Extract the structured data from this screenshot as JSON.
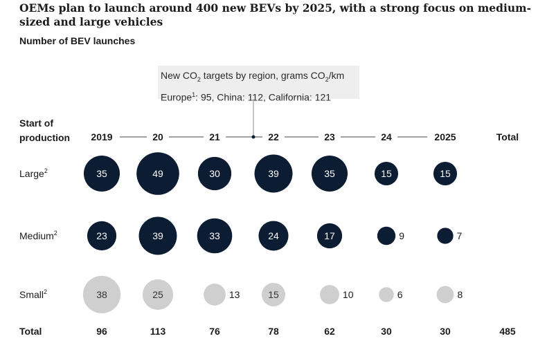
{
  "title": "OEMs plan to launch around 400 new BEVs by 2025, with a strong focus on medium-sized and large vehicles",
  "subtitle": "Number of BEV launches",
  "annotation": {
    "line1_a": "New CO",
    "line1_sub": "2",
    "line1_b": " targets by region, grams CO",
    "line1_sub2": "2",
    "line1_c": "/km",
    "line2_a": "Europe",
    "line2_sup": "1",
    "line2_b": ": 95, China: 112, California: 121"
  },
  "colors": {
    "dark": "#0c1c33",
    "light": "#cfcfcf",
    "line": "#444444",
    "text": "#1b1b1b"
  },
  "chart_data": {
    "type": "bubble-table",
    "row_header": [
      "Start of",
      "production"
    ],
    "columns": [
      "2019",
      "20",
      "21",
      "22",
      "23",
      "24",
      "2025"
    ],
    "total_column_label": "Total",
    "rows": [
      {
        "label": "Large",
        "sup": "2",
        "values": [
          35,
          49,
          30,
          39,
          35,
          15,
          15
        ],
        "color": "dark"
      },
      {
        "label": "Medium",
        "sup": "2",
        "values": [
          23,
          39,
          33,
          24,
          17,
          9,
          7
        ],
        "color": "dark"
      },
      {
        "label": "Small",
        "sup": "2",
        "values": [
          38,
          25,
          13,
          15,
          10,
          6,
          8
        ],
        "color": "light"
      }
    ],
    "totals_label": "Total",
    "totals": [
      96,
      113,
      76,
      78,
      62,
      30,
      30
    ],
    "grand_total": 485
  }
}
